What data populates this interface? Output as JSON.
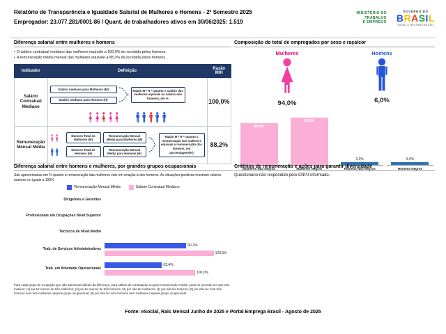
{
  "header": {
    "title_line1": "Relatório de Transparência e Igualdade Salarial de Mulheres e Homens - 2º Semestre 2025",
    "title_line2": "Empregador: 23.077.281/0001-86 / Quant. de trabalhadores ativos em 30/06/2025: 1.519",
    "mte_lines": [
      "MINISTÉRIO DO",
      "TRABALHO",
      "E EMPREGO"
    ],
    "gov_logo_top": "GOVERNO DO",
    "gov_logo_name": "BRASIL",
    "gov_logo_tagline": "UNIÃO E RECONSTRUÇÃO"
  },
  "salary_diff": {
    "title": "Diferença salarial entre mulheres e homens",
    "bullets": [
      "O salário contratual mediano das mulheres equivale a 100,0% do recebido pelos homens.",
      "A remuneração média mensal das mulheres equivale a 88,2% da recebida pelos homens."
    ],
    "table": {
      "headers": [
        "Indicador",
        "Definição",
        "Razão M/H"
      ],
      "rows": [
        {
          "indicator": "Salário Contratual Mediano",
          "box_women": "Salário mediano para Mulheres (M)",
          "box_men": "Salário mediano para Homens (H)",
          "definition": "Razão M / H = quanto o salário das mulheres equivale ao salário dos homens, em %",
          "ratio": "100,0%"
        },
        {
          "indicator": "Remuneração Mensal Média",
          "count_women": "Número Total de Mulheres (M)",
          "count_men": "Número Total de Homens (H)",
          "rem_women": "Remuneração Mensal Média para Mulheres (M)",
          "rem_men": "Remuneração Mensal Média para Homens (H)",
          "definition": "Razão M / H = quanto a remuneração das mulheres equivale a remuneração dos homens, em porcentagem(%)",
          "ratio": "88,2%"
        }
      ]
    }
  },
  "composition": {
    "title": "Composição do total de empregados por sexo e raça/cor",
    "women_label": "Mulheres",
    "women_pct": "94,0%",
    "men_label": "Homens",
    "men_pct": "6,0%",
    "bars": [
      {
        "label": "Mulheres Não Negras",
        "value": 44.0,
        "display": "44,0%",
        "color": "pink"
      },
      {
        "label": "Mulheres Negras",
        "value": 50.0,
        "display": "50,0%",
        "color": "pink"
      },
      {
        "label": "Homens Não Negros",
        "value": 3.0,
        "display": "3,0%",
        "color": "blue"
      },
      {
        "label": "Homens Negros",
        "value": 3.0,
        "display": "3,0%",
        "color": "blue"
      }
    ]
  },
  "occupational": {
    "title": "Diferença salarial entre homens e mulheres, por grandes grupos ocupacionais",
    "subtitle": "São apresentadas em % quanto a remuneração das mulheres vale em relação à dos homens. As situações positivas mostram valores maiores ou iguais a 100%",
    "legend": [
      {
        "label": "Remuneração Mensal Média",
        "color": "#3A57E8"
      },
      {
        "label": "Salário Contratual Mediano",
        "color": "#FBAED6"
      }
    ],
    "groups": [
      {
        "label": "Dirigentes e Gerentes",
        "bars": []
      },
      {
        "label": "Profissionais em Ocupações Nível Superior",
        "bars": []
      },
      {
        "label": "Técnicos de Nível Médio",
        "bars": []
      },
      {
        "label": "Trab. de Serviços Administrativos",
        "bars": [
          {
            "series": "rem",
            "value": 90.2,
            "display": "90,2%"
          },
          {
            "series": "sal",
            "value": 120.5,
            "display": "120,5%"
          }
        ]
      },
      {
        "label": "Trab. em Atividade Operacionais",
        "bars": [
          {
            "series": "rem",
            "value": 63.4,
            "display": "63,4%"
          },
          {
            "series": "sal",
            "value": 100.0,
            "display": "100,0%"
          }
        ]
      }
    ]
  },
  "criteria": {
    "title": "Critérios de remuneração e ações para garantir diversidade",
    "text": "Questionário não respondido pelo CNPJ informado."
  },
  "footnote": "Para cada grupo de ocupação que não apresenta cálculo da diferença, para salário de contratação ou para remuneração média, pode ter ocorrido um dos seis motivos: (1) por ter menos de três mulheres; (2) por ter menos de três homens; (3) por não ter mulheres; (4) por não ter homens; (5) por não ter nem três homens nem três mulheres naquele grupo ocupacional; (6) por não ter nem homens nem mulheres naquele grupo ocupacional.",
  "footer": "Fonte: eSocial, Rais Mensal Junho de 2025 e Portal Emprega Brasil - Agosto de 2025",
  "colors": {
    "navy": "#1F3864",
    "pink_strong": "#F23FA0",
    "pink_light": "#FBAED6",
    "blue_strong": "#2456DB",
    "blue_bar": "#2E74B5",
    "occ_blue": "#3A57E8",
    "red_highlight": "#E03C31",
    "green_mte": "#1E7A34",
    "brasil_letters": [
      "#2457E6",
      "#F5C400",
      "#E23B2E",
      "#2BA84A",
      "#2457E6",
      "#F5C400"
    ]
  },
  "chart_data": [
    {
      "type": "bar",
      "title": "Composição do total de empregados por sexo e raça/cor",
      "categories": [
        "Mulheres Não Negras",
        "Mulheres Negras",
        "Homens Não Negros",
        "Homens Negros"
      ],
      "values": [
        44.0,
        50.0,
        3.0,
        3.0
      ],
      "unit": "%",
      "ylim": [
        0,
        55
      ],
      "annotations": {
        "Mulheres": "94,0%",
        "Homens": "6,0%"
      },
      "legend_position": "none",
      "grid": false
    },
    {
      "type": "bar",
      "orientation": "horizontal",
      "title": "Diferença salarial entre homens e mulheres, por grandes grupos ocupacionais",
      "categories": [
        "Dirigentes e Gerentes",
        "Profissionais em Ocupações Nível Superior",
        "Técnicos de Nível Médio",
        "Trab. de Serviços Administrativos",
        "Trab. em Atividade Operacionais"
      ],
      "series": [
        {
          "name": "Remuneração Mensal Média",
          "values": [
            null,
            null,
            null,
            90.2,
            63.4
          ]
        },
        {
          "name": "Salário Contratual Mediano",
          "values": [
            null,
            null,
            null,
            120.5,
            100.0
          ]
        }
      ],
      "unit": "%",
      "xlim": [
        0,
        130
      ],
      "legend_position": "top",
      "grid": false
    }
  ]
}
